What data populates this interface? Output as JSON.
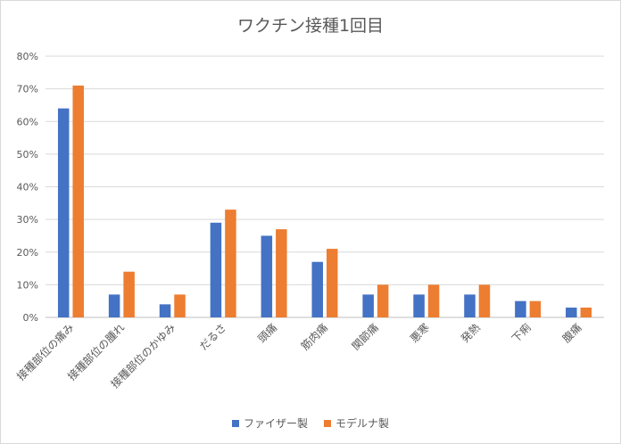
{
  "chart_data": {
    "type": "bar",
    "title": "ワクチン接種1回目",
    "categories": [
      "接種部位の痛み",
      "接種部位の腫れ",
      "接種部位のかゆみ",
      "だるさ",
      "頭痛",
      "筋肉痛",
      "関節痛",
      "悪寒",
      "発熱",
      "下痢",
      "腹痛"
    ],
    "series": [
      {
        "name": "ファイザー製",
        "color": "#4472c4",
        "values": [
          64,
          7,
          4,
          29,
          25,
          17,
          7,
          7,
          7,
          5,
          3
        ]
      },
      {
        "name": "モデルナ製",
        "color": "#ed7d31",
        "values": [
          71,
          14,
          7,
          33,
          27,
          21,
          10,
          10,
          10,
          5,
          3
        ]
      }
    ],
    "ylim": [
      0,
      80
    ],
    "yticks": [
      "0%",
      "10%",
      "20%",
      "30%",
      "40%",
      "50%",
      "60%",
      "70%",
      "80%"
    ],
    "grid": true,
    "legend_position": "bottom"
  }
}
